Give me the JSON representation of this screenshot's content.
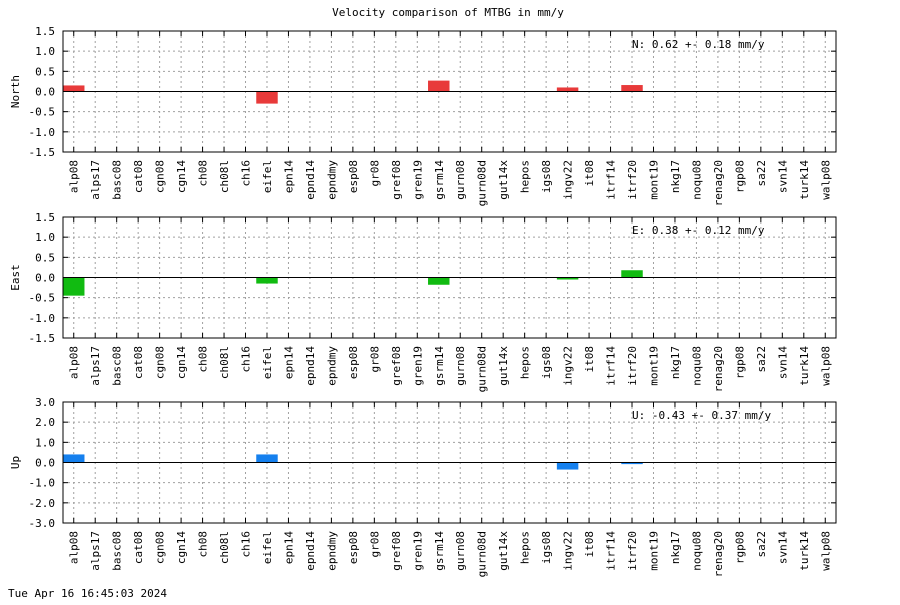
{
  "title": "Velocity comparison of MTBG in mm/y",
  "footer_timestamp": "Tue Apr 16 16:45:03 2024",
  "chart_data": [
    {
      "type": "bar",
      "ylabel": "North",
      "annotation": "N:   0.62 +-  0.18 mm/y",
      "ylim": [
        -1.5,
        1.5
      ],
      "yticks": [
        "1.5",
        "1.0",
        "0.5",
        "0.0",
        "-0.5",
        "-1.0",
        "-1.5"
      ],
      "grid": true,
      "color": "#e83a3a",
      "categories": [
        "alp08",
        "alps17",
        "basc08",
        "cat08",
        "cgn08",
        "cgn14",
        "ch08",
        "ch08l",
        "ch16",
        "eifel",
        "epn14",
        "epnd14",
        "epndmy",
        "esp08",
        "gr08",
        "gref08",
        "gren19",
        "gsrm14",
        "gurn08",
        "gurn08d",
        "gut14x",
        "hepos",
        "igs08",
        "ingv22",
        "it08",
        "itrf14",
        "itrf20",
        "mont19",
        "nkg17",
        "noqu08",
        "renag20",
        "rgp08",
        "sa22",
        "svn14",
        "turk14",
        "walp08"
      ],
      "values": [
        0.15,
        0,
        0,
        0,
        0,
        0,
        0,
        0,
        0,
        -0.3,
        0,
        0,
        0,
        0,
        0,
        0,
        0,
        0.27,
        0,
        0,
        0,
        0,
        0,
        0.1,
        0,
        0,
        0.16,
        0,
        0,
        0,
        0,
        0,
        0,
        0,
        0,
        0
      ]
    },
    {
      "type": "bar",
      "ylabel": "East",
      "annotation": "E:   0.38 +-  0.12 mm/y",
      "ylim": [
        -1.5,
        1.5
      ],
      "yticks": [
        "1.5",
        "1.0",
        "0.5",
        "0.0",
        "-0.5",
        "-1.0",
        "-1.5"
      ],
      "grid": true,
      "color": "#11bb11",
      "categories": [
        "alp08",
        "alps17",
        "basc08",
        "cat08",
        "cgn08",
        "cgn14",
        "ch08",
        "ch08l",
        "ch16",
        "eifel",
        "epn14",
        "epnd14",
        "epndmy",
        "esp08",
        "gr08",
        "gref08",
        "gren19",
        "gsrm14",
        "gurn08",
        "gurn08d",
        "gut14x",
        "hepos",
        "igs08",
        "ingv22",
        "it08",
        "itrf14",
        "itrf20",
        "mont19",
        "nkg17",
        "noqu08",
        "renag20",
        "rgp08",
        "sa22",
        "svn14",
        "turk14",
        "walp08"
      ],
      "values": [
        -0.45,
        0,
        0,
        0,
        0,
        0,
        0,
        0,
        0,
        -0.15,
        0,
        0,
        0,
        0,
        0,
        0,
        0,
        -0.18,
        0,
        0,
        0,
        0,
        0,
        -0.05,
        0,
        0,
        0.18,
        0,
        0,
        0,
        0,
        0,
        0,
        0,
        0,
        0
      ]
    },
    {
      "type": "bar",
      "ylabel": "Up",
      "annotation": "U:  -0.43 +-  0.37 mm/y",
      "ylim": [
        -3.0,
        3.0
      ],
      "yticks": [
        "3.0",
        "2.0",
        "1.0",
        "0.0",
        "-1.0",
        "-2.0",
        "-3.0"
      ],
      "grid": true,
      "color": "#1580ee",
      "categories": [
        "alp08",
        "alps17",
        "basc08",
        "cat08",
        "cgn08",
        "cgn14",
        "ch08",
        "ch08l",
        "ch16",
        "eifel",
        "epn14",
        "epnd14",
        "epndmy",
        "esp08",
        "gr08",
        "gref08",
        "gren19",
        "gsrm14",
        "gurn08",
        "gurn08d",
        "gut14x",
        "hepos",
        "igs08",
        "ingv22",
        "it08",
        "itrf14",
        "itrf20",
        "mont19",
        "nkg17",
        "noqu08",
        "renag20",
        "rgp08",
        "sa22",
        "svn14",
        "turk14",
        "walp08"
      ],
      "values": [
        0.4,
        0,
        0,
        0,
        0,
        0,
        0,
        0,
        0,
        0.4,
        0,
        0,
        0,
        0,
        0,
        0,
        0,
        0,
        0,
        0,
        0,
        0,
        0,
        -0.35,
        0,
        0,
        -0.08,
        0,
        0,
        0,
        0,
        0,
        0,
        0,
        0,
        0
      ]
    }
  ]
}
